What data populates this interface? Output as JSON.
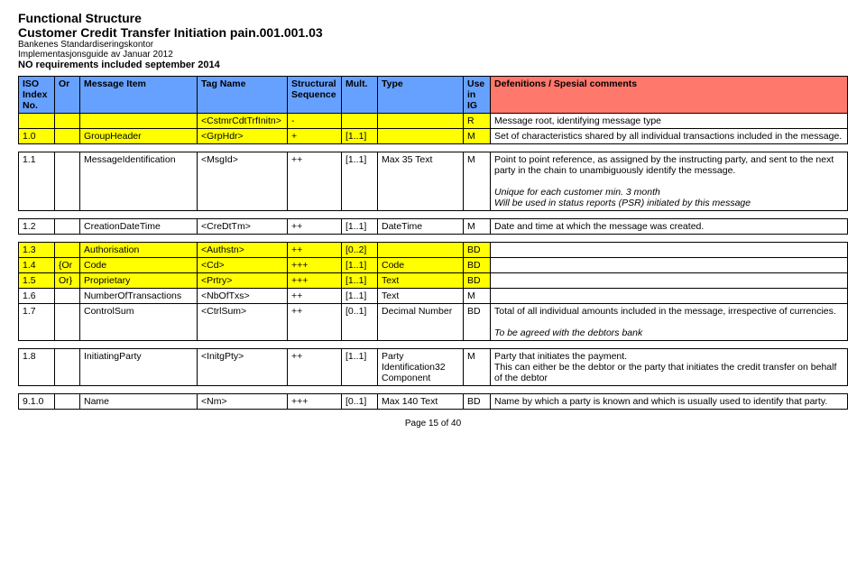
{
  "header": {
    "title1": "Functional Structure",
    "title2": "Customer Credit Transfer Initiation pain.001.001.03",
    "org": "Bankenes Standardiseringskontor",
    "impl": "Implementasjonsguide av Januar 2012",
    "req": "NO requirements included september 2014"
  },
  "columns": [
    "ISO Index No.",
    "Or",
    "Message Item",
    "Tag Name",
    "Structural Sequence",
    "Mult.",
    "Type",
    "Use in IG",
    "Defenitions / Spesial comments"
  ],
  "colors": {
    "header_left": "#67a1ff",
    "header_right": "#ff786c",
    "yellow": "#ffff00",
    "unique_text": "Unique for each customer min. 3 month\nWill be used in status reports (PSR) initiated by this message",
    "agree_text": "To be agreed with the debtors bank"
  },
  "rows": [
    {
      "c": [
        "",
        "",
        "",
        "<CstmrCdtTrfInitn>",
        "-",
        "",
        "",
        "R",
        "Message root, identifying message type"
      ],
      "bg": "#ffff00"
    },
    {
      "c": [
        "1.0",
        "",
        "GroupHeader",
        "<GrpHdr>",
        "+",
        "[1..1]",
        "",
        "M",
        "Set of characteristics shared by all individual transactions included in the message."
      ],
      "bg": "#ffff00",
      "spacer": true
    },
    {
      "c": [
        "1.1",
        "",
        "MessageIdentification",
        "<MsgId>",
        "++",
        "[1..1]",
        "Max 35 Text",
        "M",
        "Point to point reference, as assigned by the instructing party, and sent to the next party in the chain to unambiguously identify the message."
      ],
      "extra": "unique",
      "spacer": true
    },
    {
      "c": [
        "1.2",
        "",
        "CreationDateTime",
        "<CreDtTm>",
        "++",
        "[1..1]",
        "DateTime",
        "M",
        "Date and time at which the message was created."
      ],
      "spacer": true
    },
    {
      "c": [
        "1.3",
        "",
        "Authorisation",
        "<Authstn>",
        "++",
        "[0..2]",
        "",
        "BD",
        ""
      ],
      "bg": "#ffff00"
    },
    {
      "c": [
        "1.4",
        "{Or",
        "Code",
        "<Cd>",
        "+++",
        "[1..1]",
        "Code",
        "BD",
        ""
      ],
      "bg": "#ffff00"
    },
    {
      "c": [
        "1.5",
        "Or}",
        "Proprietary",
        "<Prtry>",
        "+++",
        "[1..1]",
        "Text",
        "BD",
        ""
      ],
      "bg": "#ffff00"
    },
    {
      "c": [
        "1.6",
        "",
        "NumberOfTransactions",
        "<NbOfTxs>",
        "++",
        "[1..1]",
        "Text",
        "M",
        ""
      ]
    },
    {
      "c": [
        "1.7",
        "",
        "ControlSum",
        "<CtrlSum>",
        "++",
        "[0..1]",
        "Decimal Number",
        "BD",
        "Total of all individual amounts included in the message, irrespective of currencies."
      ],
      "extra": "agree",
      "spacer": true
    },
    {
      "c": [
        "1.8",
        "",
        "InitiatingParty",
        "<InitgPty>",
        "++",
        "[1..1]",
        "Party Identification32 Component",
        "M",
        "Party that initiates the payment.\nThis can either be the debtor or the party that initiates the credit transfer on behalf of the debtor"
      ],
      "spacer": true
    },
    {
      "c": [
        "9.1.0",
        "",
        "Name",
        "<Nm>",
        "+++",
        "[0..1]",
        "Max 140 Text",
        "BD",
        "Name by which a party is known and which is usually used to identify that party."
      ]
    }
  ],
  "footer": "Page 15 of 40"
}
